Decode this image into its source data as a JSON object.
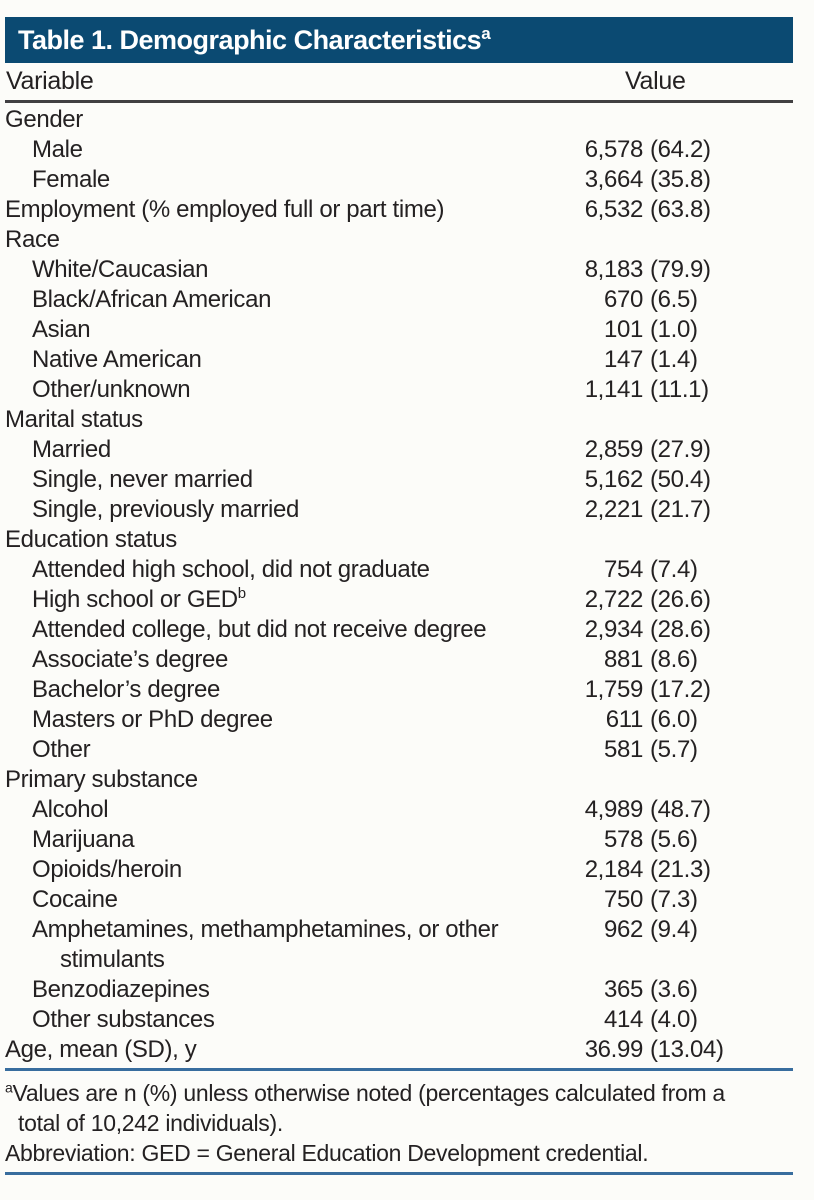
{
  "header": {
    "title": "Table 1. Demographic Characteristics",
    "superscript": "a"
  },
  "columns": {
    "variable": "Variable",
    "value": "Value"
  },
  "table": {
    "rows": [
      {
        "label": "Gender",
        "indent": 0,
        "count": "",
        "pct": ""
      },
      {
        "label": "Male",
        "indent": 1,
        "count": "6,578",
        "pct": "(64.2)"
      },
      {
        "label": "Female",
        "indent": 1,
        "count": "3,664",
        "pct": "(35.8)"
      },
      {
        "label": "Employment (% employed full or part time)",
        "indent": 0,
        "count": "6,532",
        "pct": "(63.8)"
      },
      {
        "label": "Race",
        "indent": 0,
        "count": "",
        "pct": ""
      },
      {
        "label": "White/Caucasian",
        "indent": 1,
        "count": "8,183",
        "pct": "(79.9)"
      },
      {
        "label": "Black/African American",
        "indent": 1,
        "count": "670",
        "pct": "(6.5)"
      },
      {
        "label": "Asian",
        "indent": 1,
        "count": "101",
        "pct": "(1.0)"
      },
      {
        "label": "Native American",
        "indent": 1,
        "count": "147",
        "pct": "(1.4)"
      },
      {
        "label": "Other/unknown",
        "indent": 1,
        "count": "1,141",
        "pct": "(11.1)"
      },
      {
        "label": "Marital status",
        "indent": 0,
        "count": "",
        "pct": ""
      },
      {
        "label": "Married",
        "indent": 1,
        "count": "2,859",
        "pct": "(27.9)"
      },
      {
        "label": "Single, never married",
        "indent": 1,
        "count": "5,162",
        "pct": "(50.4)"
      },
      {
        "label": "Single, previously married",
        "indent": 1,
        "count": "2,221",
        "pct": "(21.7)"
      },
      {
        "label": "Education status",
        "indent": 0,
        "count": "",
        "pct": ""
      },
      {
        "label": "Attended high school, did not graduate",
        "indent": 1,
        "count": "754",
        "pct": "(7.4)"
      },
      {
        "label": "High school or GED",
        "sup": "b",
        "indent": 1,
        "count": "2,722",
        "pct": "(26.6)"
      },
      {
        "label": "Attended college, but did not receive degree",
        "indent": 1,
        "count": "2,934",
        "pct": "(28.6)"
      },
      {
        "label": "Associate’s degree",
        "indent": 1,
        "count": "881",
        "pct": "(8.6)"
      },
      {
        "label": "Bachelor’s degree",
        "indent": 1,
        "count": "1,759",
        "pct": "(17.2)"
      },
      {
        "label": "Masters or PhD degree",
        "indent": 1,
        "count": "611",
        "pct": "(6.0)"
      },
      {
        "label": "Other",
        "indent": 1,
        "count": "581",
        "pct": "(5.7)"
      },
      {
        "label": "Primary substance",
        "indent": 0,
        "count": "",
        "pct": ""
      },
      {
        "label": "Alcohol",
        "indent": 1,
        "count": "4,989",
        "pct": "(48.7)"
      },
      {
        "label": "Marijuana",
        "indent": 1,
        "count": "578",
        "pct": "(5.6)"
      },
      {
        "label": "Opioids/heroin",
        "indent": 1,
        "count": "2,184",
        "pct": "(21.3)"
      },
      {
        "label": "Cocaine",
        "indent": 1,
        "count": "750",
        "pct": "(7.3)"
      },
      {
        "label": "Amphetamines, methamphetamines, or other",
        "label2": "stimulants",
        "indent": 1,
        "count": "962",
        "pct": "(9.4)"
      },
      {
        "label": "Benzodiazepines",
        "indent": 1,
        "count": "365",
        "pct": "(3.6)"
      },
      {
        "label": "Other substances",
        "indent": 1,
        "count": "414",
        "pct": "(4.0)"
      },
      {
        "label": "Age, mean (SD), y",
        "indent": 0,
        "count": "36.99",
        "pct": "(13.04)"
      }
    ]
  },
  "footnotes": {
    "a_sup": "a",
    "a_line1": "Values are n (%) unless otherwise noted (percentages calculated from a",
    "a_line2": "total of 10,242 individuals).",
    "abbreviation": "Abbreviation: GED = General Education Development credential."
  },
  "colors": {
    "header_bg": "#0b4a72",
    "rule_dark": "#414042",
    "rule_blue": "#386d9e",
    "text": "#242122",
    "header_text": "#ffffff",
    "background": "#fcfcf9"
  }
}
